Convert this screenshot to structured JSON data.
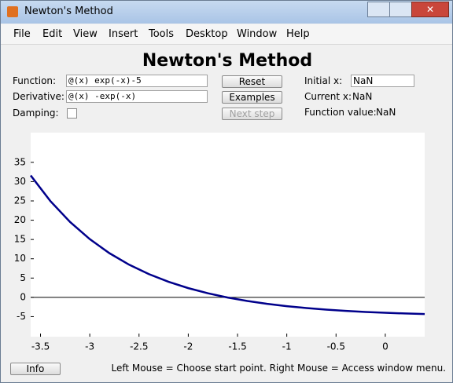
{
  "window": {
    "title": "Newton's Method"
  },
  "menu": [
    "File",
    "Edit",
    "View",
    "Insert",
    "Tools",
    "Desktop",
    "Window",
    "Help"
  ],
  "heading": "Newton's Method",
  "controls": {
    "function_label": "Function:",
    "function_value": "@(x) exp(-x)-5",
    "derivative_label": "Derivative:",
    "derivative_value": "@(x) -exp(-x)",
    "damping_label": "Damping:",
    "reset": "Reset",
    "examples": "Examples",
    "next_step": "Next step",
    "initial_x_label": "Initial x:",
    "initial_x_value": "NaN",
    "current_x_label": "Current x:",
    "current_x_value": "NaN",
    "function_value_label": "Function value:",
    "function_value_value": "NaN"
  },
  "footer": {
    "info": "Info",
    "status": "Left Mouse = Choose start point. Right Mouse = Access window menu."
  },
  "chart_data": {
    "type": "line",
    "x": [
      -3.6,
      -3.4,
      -3.2,
      -3.0,
      -2.8,
      -2.6,
      -2.4,
      -2.2,
      -2.0,
      -1.8,
      -1.6,
      -1.4,
      -1.2,
      -1.0,
      -0.8,
      -0.6,
      -0.4,
      -0.2,
      0,
      0.2,
      0.4
    ],
    "series": [
      {
        "color": "#00008b",
        "values": [
          31.6,
          24.96,
          19.53,
          15.09,
          11.44,
          8.46,
          6.02,
          4.03,
          2.39,
          1.05,
          -0.05,
          -0.94,
          -1.68,
          -2.28,
          -2.77,
          -3.18,
          -3.51,
          -3.78,
          -4,
          -4.18,
          -4.33
        ]
      }
    ],
    "xlim": [
      -3.6,
      0.4
    ],
    "ylim": [
      -10.2,
      42.7
    ],
    "xticks": [
      -3.5,
      -3,
      -2.5,
      -2,
      -1.5,
      -1,
      -0.5,
      0
    ],
    "yticks": [
      -5,
      0,
      5,
      10,
      15,
      20,
      25,
      30,
      35
    ]
  }
}
